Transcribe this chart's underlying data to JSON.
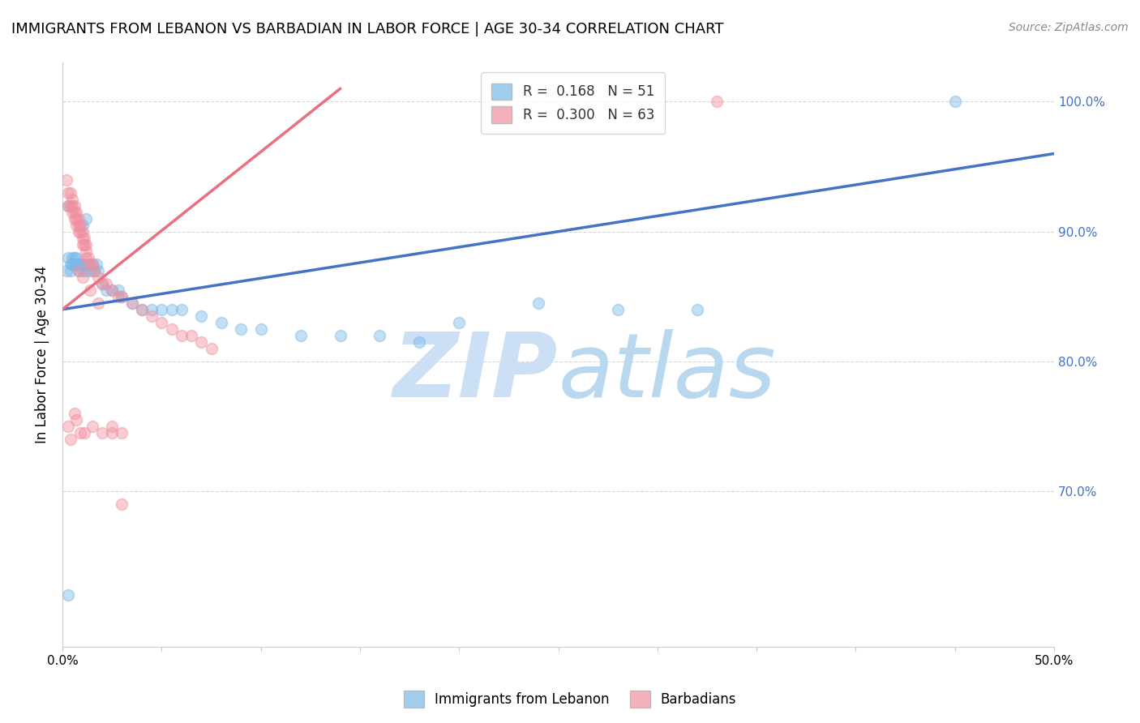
{
  "title": "IMMIGRANTS FROM LEBANON VS BARBADIAN IN LABOR FORCE | AGE 30-34 CORRELATION CHART",
  "source": "Source: ZipAtlas.com",
  "ylabel": "In Labor Force | Age 30-34",
  "xlim": [
    0.0,
    0.5
  ],
  "ylim": [
    0.58,
    1.03
  ],
  "yticks": [
    0.7,
    0.8,
    0.9,
    1.0
  ],
  "ytick_labels": [
    "70.0%",
    "80.0%",
    "90.0%",
    "100.0%"
  ],
  "xtick_positions": [
    0.0,
    0.05,
    0.1,
    0.15,
    0.2,
    0.25,
    0.3,
    0.35,
    0.4,
    0.45,
    0.5
  ],
  "xtick_labels": [
    "0.0%",
    "",
    "",
    "",
    "",
    "",
    "",
    "",
    "",
    "",
    "50.0%"
  ],
  "legend_entries": [
    {
      "label": "R =  0.168   N = 51",
      "color": "#a8c8e8"
    },
    {
      "label": "R =  0.300   N = 63",
      "color": "#f4b8c8"
    }
  ],
  "blue_scatter_x": [
    0.002,
    0.003,
    0.004,
    0.004,
    0.005,
    0.005,
    0.006,
    0.006,
    0.007,
    0.007,
    0.008,
    0.008,
    0.009,
    0.01,
    0.01,
    0.011,
    0.012,
    0.013,
    0.014,
    0.015,
    0.016,
    0.017,
    0.018,
    0.02,
    0.022,
    0.025,
    0.028,
    0.03,
    0.035,
    0.04,
    0.045,
    0.05,
    0.055,
    0.06,
    0.07,
    0.08,
    0.09,
    0.1,
    0.12,
    0.14,
    0.16,
    0.18,
    0.2,
    0.24,
    0.28,
    0.32,
    0.003,
    0.01,
    0.012,
    0.45,
    0.003
  ],
  "blue_scatter_y": [
    0.87,
    0.88,
    0.875,
    0.87,
    0.88,
    0.875,
    0.88,
    0.875,
    0.88,
    0.875,
    0.875,
    0.87,
    0.875,
    0.875,
    0.87,
    0.875,
    0.87,
    0.875,
    0.87,
    0.875,
    0.87,
    0.875,
    0.87,
    0.86,
    0.855,
    0.855,
    0.855,
    0.85,
    0.845,
    0.84,
    0.84,
    0.84,
    0.84,
    0.84,
    0.835,
    0.83,
    0.825,
    0.825,
    0.82,
    0.82,
    0.82,
    0.815,
    0.83,
    0.845,
    0.84,
    0.84,
    0.92,
    0.905,
    0.91,
    1.0,
    0.62
  ],
  "pink_scatter_x": [
    0.002,
    0.003,
    0.003,
    0.004,
    0.004,
    0.005,
    0.005,
    0.005,
    0.006,
    0.006,
    0.006,
    0.007,
    0.007,
    0.007,
    0.008,
    0.008,
    0.008,
    0.009,
    0.009,
    0.01,
    0.01,
    0.01,
    0.011,
    0.011,
    0.012,
    0.012,
    0.012,
    0.013,
    0.014,
    0.015,
    0.016,
    0.018,
    0.02,
    0.022,
    0.025,
    0.028,
    0.03,
    0.035,
    0.04,
    0.045,
    0.05,
    0.055,
    0.06,
    0.065,
    0.07,
    0.075,
    0.008,
    0.01,
    0.014,
    0.018,
    0.025,
    0.03,
    0.003,
    0.004,
    0.006,
    0.007,
    0.009,
    0.011,
    0.015,
    0.02,
    0.025,
    0.03,
    0.33
  ],
  "pink_scatter_y": [
    0.94,
    0.93,
    0.92,
    0.93,
    0.92,
    0.925,
    0.92,
    0.915,
    0.92,
    0.915,
    0.91,
    0.915,
    0.91,
    0.905,
    0.91,
    0.905,
    0.9,
    0.905,
    0.9,
    0.9,
    0.895,
    0.89,
    0.895,
    0.89,
    0.89,
    0.885,
    0.88,
    0.88,
    0.875,
    0.875,
    0.87,
    0.865,
    0.86,
    0.86,
    0.855,
    0.85,
    0.85,
    0.845,
    0.84,
    0.835,
    0.83,
    0.825,
    0.82,
    0.82,
    0.815,
    0.81,
    0.87,
    0.865,
    0.855,
    0.845,
    0.75,
    0.745,
    0.75,
    0.74,
    0.76,
    0.755,
    0.745,
    0.745,
    0.75,
    0.745,
    0.745,
    0.69,
    1.0
  ],
  "blue_line_x": [
    0.0,
    0.5
  ],
  "blue_line_y": [
    0.84,
    0.96
  ],
  "pink_line_x": [
    0.0,
    0.14
  ],
  "pink_line_y": [
    0.84,
    1.01
  ],
  "blue_color": "#7ab8e8",
  "pink_color": "#f090a0",
  "blue_line_color": "#4472c4",
  "pink_line_color": "#e87080",
  "scatter_size": 100,
  "scatter_alpha": 0.45,
  "watermark_zip": "ZIP",
  "watermark_atlas": "atlas",
  "watermark_color": "#cce0f5",
  "watermark_fontsize": 80,
  "title_fontsize": 13,
  "axis_label_fontsize": 12,
  "tick_fontsize": 11,
  "source_fontsize": 10,
  "legend_fontsize": 12,
  "right_ytick_color": "#4472c4",
  "background_color": "#ffffff",
  "grid_color": "#d8d8d8"
}
